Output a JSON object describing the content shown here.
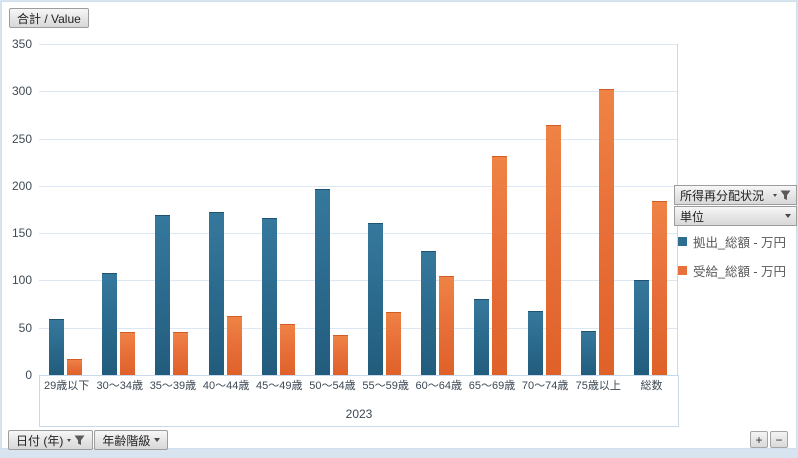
{
  "window": {
    "values_field_label": "合計 / Value",
    "zoom_in_label": "+",
    "zoom_out_label": "−"
  },
  "filters": {
    "top_right": [
      {
        "label": "所得再分配状況"
      },
      {
        "label": "単位"
      }
    ],
    "bottom_left": [
      {
        "label": "日付 (年)"
      },
      {
        "label": "年齢階級"
      }
    ]
  },
  "chart_data": {
    "type": "bar",
    "title": "合計 / Value",
    "categories": [
      "29歳以下",
      "30〜34歳",
      "35〜39歳",
      "40〜44歳",
      "45〜49歳",
      "50〜54歳",
      "55〜59歳",
      "60〜64歳",
      "65〜69歳",
      "70〜74歳",
      "75歳以上",
      "総数"
    ],
    "group_label": "2023",
    "series": [
      {
        "name": "拠出_総額 - 万円",
        "color": "#2d6d90",
        "values": [
          59,
          108,
          169,
          172,
          166,
          197,
          161,
          131,
          80,
          68,
          47,
          100
        ]
      },
      {
        "name": "受給_総額 - 万円",
        "color": "#e8703a",
        "values": [
          17,
          45,
          45,
          62,
          54,
          42,
          67,
          105,
          232,
          264,
          302,
          184
        ]
      }
    ],
    "ylim": [
      0,
      350
    ],
    "ytick_step": 50,
    "yticks": [
      0,
      50,
      100,
      150,
      200,
      250,
      300,
      350
    ],
    "grid": true,
    "legend_position": "right",
    "xlabel": "",
    "ylabel": ""
  }
}
